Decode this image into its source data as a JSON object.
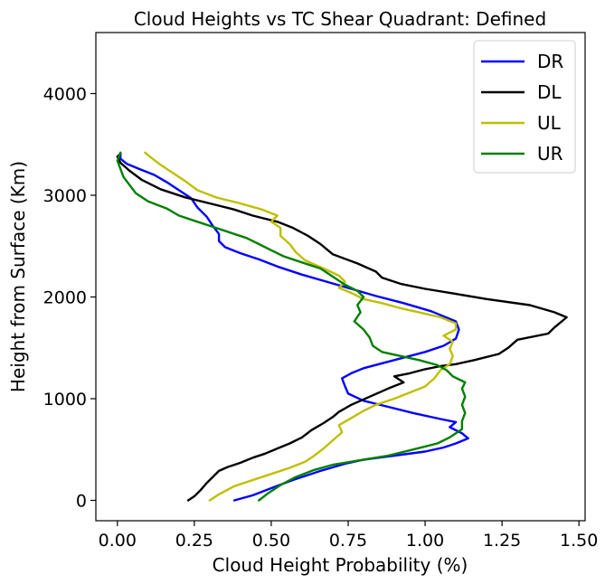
{
  "chart_data": {
    "type": "line",
    "title": "Cloud Heights vs TC Shear Quadrant: Defined",
    "xlabel": "Cloud Height Probability (%)",
    "ylabel": "Height from Surface (Km)",
    "xlim": [
      -0.07,
      1.52
    ],
    "ylim": [
      -200,
      4600
    ],
    "xticks": [
      "0.00",
      "0.25",
      "0.50",
      "0.75",
      "1.00",
      "1.25",
      "1.50"
    ],
    "xtick_values": [
      0,
      0.25,
      0.5,
      0.75,
      1.0,
      1.25,
      1.5
    ],
    "yticks": [
      "0",
      "1000",
      "2000",
      "3000",
      "4000"
    ],
    "ytick_values": [
      0,
      1000,
      2000,
      3000,
      4000
    ],
    "grid": false,
    "legend_position": "top-right",
    "series": [
      {
        "name": "DR",
        "color": "#0000ff",
        "points": [
          [
            0.38,
            0
          ],
          [
            0.44,
            50
          ],
          [
            0.5,
            120
          ],
          [
            0.57,
            200
          ],
          [
            0.66,
            290
          ],
          [
            0.74,
            360
          ],
          [
            0.8,
            400
          ],
          [
            0.9,
            440
          ],
          [
            1.0,
            480
          ],
          [
            1.06,
            520
          ],
          [
            1.1,
            560
          ],
          [
            1.14,
            610
          ],
          [
            1.12,
            660
          ],
          [
            1.08,
            720
          ],
          [
            1.1,
            770
          ],
          [
            1.05,
            800
          ],
          [
            0.96,
            860
          ],
          [
            0.88,
            920
          ],
          [
            0.8,
            980
          ],
          [
            0.75,
            1050
          ],
          [
            0.74,
            1120
          ],
          [
            0.73,
            1200
          ],
          [
            0.76,
            1250
          ],
          [
            0.8,
            1300
          ],
          [
            0.9,
            1380
          ],
          [
            1.0,
            1460
          ],
          [
            1.06,
            1520
          ],
          [
            1.1,
            1590
          ],
          [
            1.11,
            1680
          ],
          [
            1.1,
            1760
          ],
          [
            1.02,
            1860
          ],
          [
            0.93,
            1940
          ],
          [
            0.84,
            2010
          ],
          [
            0.76,
            2080
          ],
          [
            0.68,
            2150
          ],
          [
            0.6,
            2220
          ],
          [
            0.52,
            2300
          ],
          [
            0.46,
            2370
          ],
          [
            0.4,
            2430
          ],
          [
            0.35,
            2490
          ],
          [
            0.33,
            2550
          ],
          [
            0.33,
            2620
          ],
          [
            0.31,
            2700
          ],
          [
            0.29,
            2790
          ],
          [
            0.26,
            2880
          ],
          [
            0.24,
            2970
          ],
          [
            0.2,
            3050
          ],
          [
            0.16,
            3130
          ],
          [
            0.12,
            3200
          ],
          [
            0.07,
            3260
          ],
          [
            0.03,
            3310
          ],
          [
            0.01,
            3360
          ],
          [
            0.01,
            3410
          ]
        ]
      },
      {
        "name": "DL",
        "color": "#000000",
        "points": [
          [
            0.23,
            0
          ],
          [
            0.25,
            40
          ],
          [
            0.27,
            100
          ],
          [
            0.29,
            170
          ],
          [
            0.31,
            230
          ],
          [
            0.33,
            290
          ],
          [
            0.36,
            330
          ],
          [
            0.4,
            370
          ],
          [
            0.44,
            420
          ],
          [
            0.48,
            460
          ],
          [
            0.52,
            510
          ],
          [
            0.56,
            560
          ],
          [
            0.6,
            620
          ],
          [
            0.63,
            690
          ],
          [
            0.67,
            760
          ],
          [
            0.7,
            820
          ],
          [
            0.72,
            870
          ],
          [
            0.76,
            940
          ],
          [
            0.82,
            1020
          ],
          [
            0.88,
            1100
          ],
          [
            0.93,
            1160
          ],
          [
            0.9,
            1220
          ],
          [
            0.95,
            1250
          ],
          [
            1.0,
            1290
          ],
          [
            1.05,
            1320
          ],
          [
            1.1,
            1340
          ],
          [
            1.16,
            1380
          ],
          [
            1.24,
            1440
          ],
          [
            1.27,
            1500
          ],
          [
            1.3,
            1580
          ],
          [
            1.4,
            1640
          ],
          [
            1.42,
            1700
          ],
          [
            1.46,
            1800
          ],
          [
            1.42,
            1850
          ],
          [
            1.34,
            1920
          ],
          [
            1.2,
            1980
          ],
          [
            1.1,
            2030
          ],
          [
            1.0,
            2080
          ],
          [
            0.92,
            2130
          ],
          [
            0.86,
            2190
          ],
          [
            0.84,
            2250
          ],
          [
            0.78,
            2330
          ],
          [
            0.7,
            2420
          ],
          [
            0.66,
            2520
          ],
          [
            0.62,
            2600
          ],
          [
            0.57,
            2680
          ],
          [
            0.52,
            2740
          ],
          [
            0.44,
            2800
          ],
          [
            0.38,
            2860
          ],
          [
            0.3,
            2920
          ],
          [
            0.22,
            2980
          ],
          [
            0.14,
            3060
          ],
          [
            0.08,
            3150
          ],
          [
            0.04,
            3240
          ],
          [
            0.01,
            3320
          ],
          [
            0.0,
            3380
          ],
          [
            0.01,
            3410
          ]
        ]
      },
      {
        "name": "UL",
        "color": "#bfbf00",
        "points": [
          [
            0.3,
            0
          ],
          [
            0.33,
            60
          ],
          [
            0.38,
            140
          ],
          [
            0.44,
            200
          ],
          [
            0.5,
            260
          ],
          [
            0.56,
            320
          ],
          [
            0.61,
            380
          ],
          [
            0.64,
            440
          ],
          [
            0.67,
            510
          ],
          [
            0.7,
            590
          ],
          [
            0.73,
            670
          ],
          [
            0.72,
            740
          ],
          [
            0.76,
            810
          ],
          [
            0.8,
            880
          ],
          [
            0.84,
            940
          ],
          [
            0.9,
            1000
          ],
          [
            0.95,
            1060
          ],
          [
            1.0,
            1120
          ],
          [
            1.03,
            1200
          ],
          [
            1.05,
            1280
          ],
          [
            1.08,
            1340
          ],
          [
            1.09,
            1420
          ],
          [
            1.08,
            1490
          ],
          [
            1.09,
            1560
          ],
          [
            1.06,
            1620
          ],
          [
            1.1,
            1680
          ],
          [
            1.1,
            1740
          ],
          [
            1.05,
            1800
          ],
          [
            0.98,
            1850
          ],
          [
            0.92,
            1890
          ],
          [
            0.86,
            1940
          ],
          [
            0.8,
            1980
          ],
          [
            0.76,
            2040
          ],
          [
            0.72,
            2090
          ],
          [
            0.74,
            2150
          ],
          [
            0.72,
            2210
          ],
          [
            0.67,
            2280
          ],
          [
            0.61,
            2360
          ],
          [
            0.58,
            2440
          ],
          [
            0.56,
            2520
          ],
          [
            0.53,
            2600
          ],
          [
            0.53,
            2680
          ],
          [
            0.5,
            2740
          ],
          [
            0.52,
            2800
          ],
          [
            0.47,
            2860
          ],
          [
            0.4,
            2920
          ],
          [
            0.32,
            2980
          ],
          [
            0.26,
            3050
          ],
          [
            0.22,
            3140
          ],
          [
            0.18,
            3220
          ],
          [
            0.14,
            3300
          ],
          [
            0.11,
            3370
          ],
          [
            0.09,
            3420
          ]
        ]
      },
      {
        "name": "UR",
        "color": "#008000",
        "points": [
          [
            0.46,
            0
          ],
          [
            0.49,
            70
          ],
          [
            0.53,
            150
          ],
          [
            0.58,
            230
          ],
          [
            0.64,
            300
          ],
          [
            0.7,
            350
          ],
          [
            0.78,
            390
          ],
          [
            0.88,
            440
          ],
          [
            0.96,
            500
          ],
          [
            1.04,
            560
          ],
          [
            1.08,
            620
          ],
          [
            1.12,
            700
          ],
          [
            1.12,
            780
          ],
          [
            1.13,
            860
          ],
          [
            1.12,
            940
          ],
          [
            1.13,
            1020
          ],
          [
            1.12,
            1100
          ],
          [
            1.13,
            1160
          ],
          [
            1.09,
            1220
          ],
          [
            1.07,
            1280
          ],
          [
            1.04,
            1330
          ],
          [
            0.98,
            1380
          ],
          [
            0.92,
            1420
          ],
          [
            0.86,
            1460
          ],
          [
            0.83,
            1520
          ],
          [
            0.82,
            1600
          ],
          [
            0.8,
            1680
          ],
          [
            0.77,
            1760
          ],
          [
            0.79,
            1850
          ],
          [
            0.78,
            1920
          ],
          [
            0.8,
            2000
          ],
          [
            0.78,
            2060
          ],
          [
            0.74,
            2120
          ],
          [
            0.7,
            2200
          ],
          [
            0.66,
            2280
          ],
          [
            0.6,
            2340
          ],
          [
            0.54,
            2400
          ],
          [
            0.5,
            2460
          ],
          [
            0.46,
            2520
          ],
          [
            0.42,
            2580
          ],
          [
            0.38,
            2620
          ],
          [
            0.32,
            2680
          ],
          [
            0.26,
            2740
          ],
          [
            0.2,
            2800
          ],
          [
            0.16,
            2870
          ],
          [
            0.1,
            2940
          ],
          [
            0.06,
            3020
          ],
          [
            0.04,
            3100
          ],
          [
            0.02,
            3180
          ],
          [
            0.01,
            3260
          ],
          [
            0.0,
            3340
          ],
          [
            0.01,
            3420
          ]
        ]
      }
    ]
  }
}
